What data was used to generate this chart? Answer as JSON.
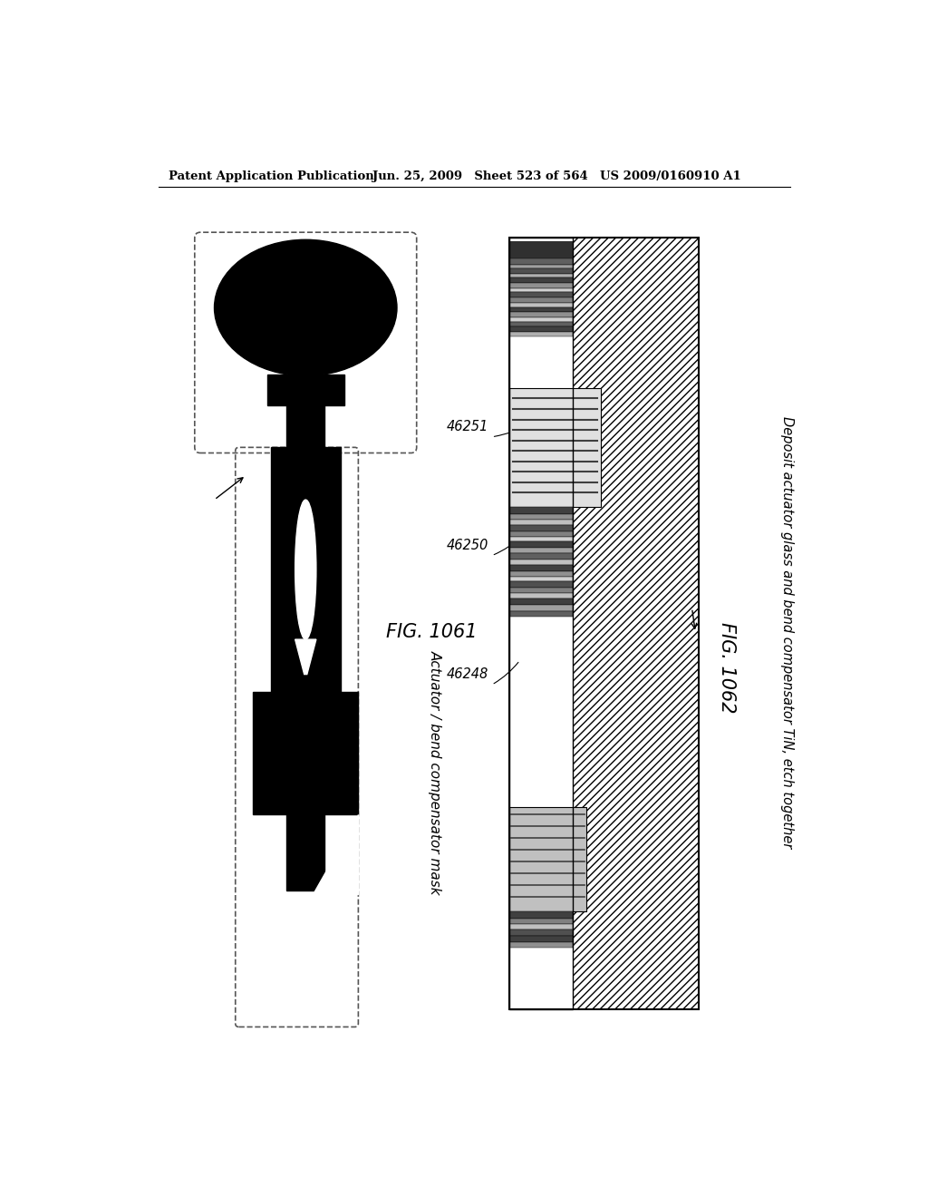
{
  "bg_color": "#ffffff",
  "header_left": "Patent Application Publication",
  "header_right": "Jun. 25, 2009 Sheet 523 of 564 US 2009/0160910 A1",
  "fig1_label": "FIG. 1061",
  "fig2_label": "FIG. 1062",
  "caption1": "Actuator / bend compensator mask",
  "caption2": "Deposit actuator glass and bend compensator TiN, etch together",
  "label_46248": "46248",
  "label_46250": "46250",
  "label_46251": "46251"
}
